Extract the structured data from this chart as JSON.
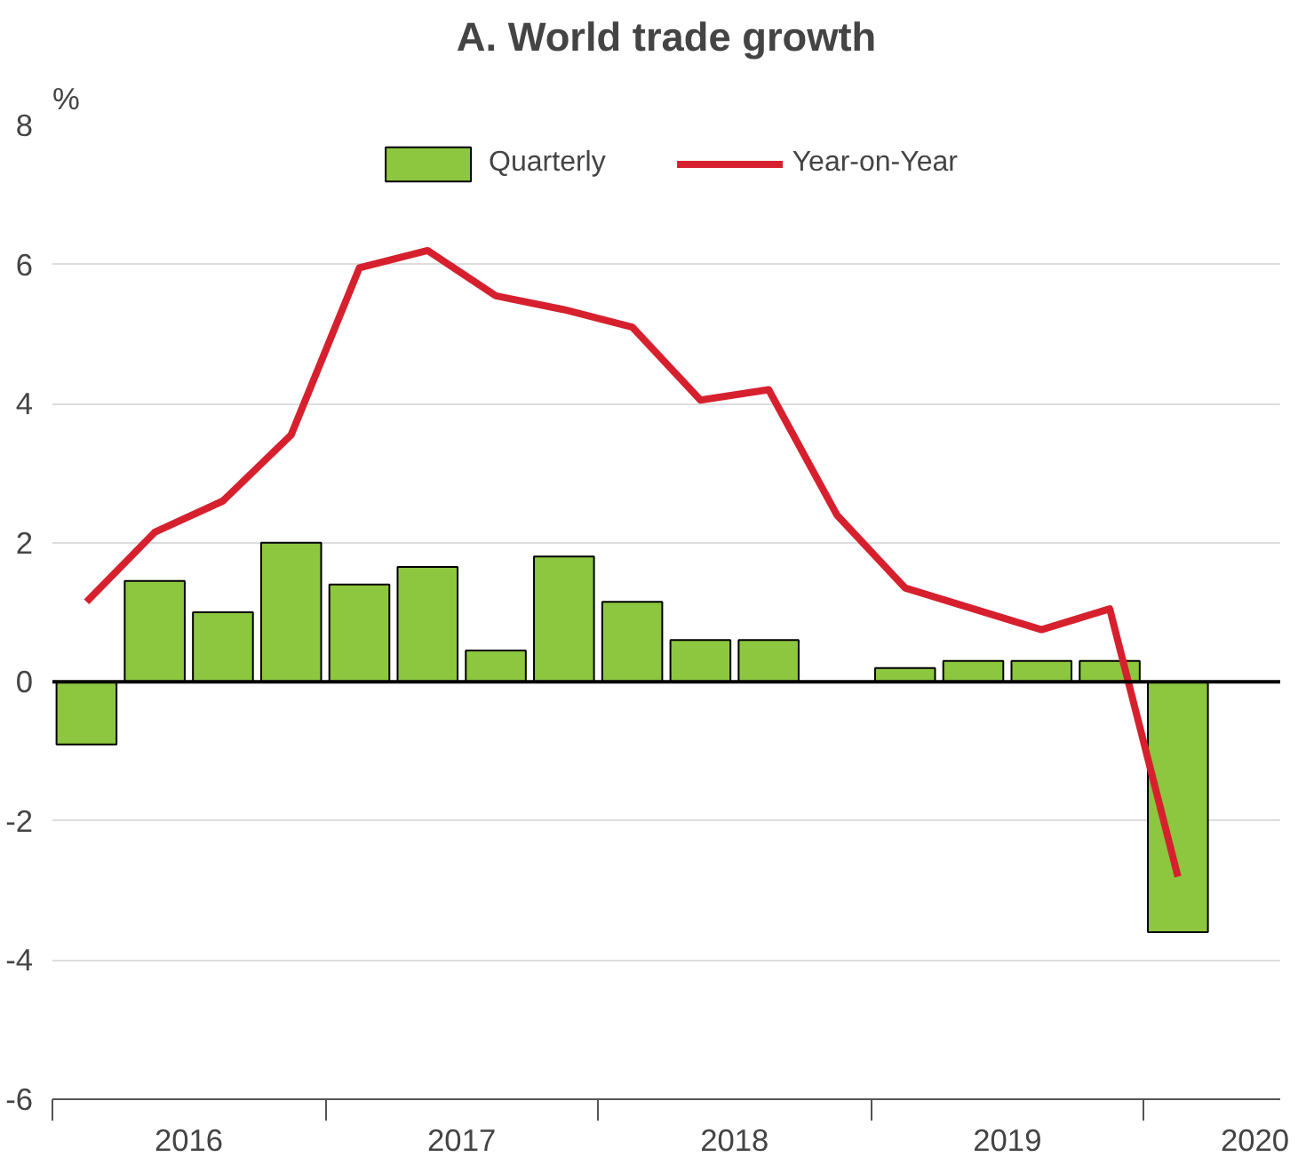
{
  "chart_data": {
    "type": "bar",
    "title": "A. World trade growth",
    "ylabel": "%",
    "x": [
      2016.125,
      2016.375,
      2016.625,
      2016.875,
      2017.125,
      2017.375,
      2017.625,
      2017.875,
      2018.125,
      2018.375,
      2018.625,
      2018.875,
      2019.125,
      2019.375,
      2019.625,
      2019.875,
      2020.125
    ],
    "series": [
      {
        "name": "Quarterly",
        "color": "#8dc63f",
        "values": [
          -0.9,
          1.45,
          1.0,
          2.0,
          1.4,
          1.65,
          0.45,
          1.8,
          1.15,
          0.6,
          0.6,
          null,
          0.2,
          0.3,
          0.3,
          0.3,
          -3.6
        ]
      },
      {
        "name": "Year-on-Year",
        "type": "line",
        "color": "#d7202e",
        "values": [
          1.15,
          2.15,
          2.6,
          3.55,
          5.95,
          6.2,
          5.55,
          5.35,
          5.1,
          4.05,
          4.2,
          2.4,
          1.35,
          1.05,
          0.75,
          1.05,
          -2.8
        ]
      }
    ],
    "xlim": [
      2016,
      2020.5
    ],
    "xticks": [
      {
        "value": 2016,
        "label": null
      },
      {
        "value": 2016.5,
        "label": "2016"
      },
      {
        "value": 2017,
        "label": null
      },
      {
        "value": 2017.5,
        "label": "2017"
      },
      {
        "value": 2018,
        "label": null
      },
      {
        "value": 2018.5,
        "label": "2018"
      },
      {
        "value": 2019,
        "label": null
      },
      {
        "value": 2019.5,
        "label": "2019"
      },
      {
        "value": 2020,
        "label": null
      },
      {
        "value": 2020.5,
        "label": "2020"
      }
    ],
    "ylim": [
      -6,
      8
    ],
    "yticks": [
      -6,
      -4,
      -2,
      0,
      2,
      4,
      6,
      8
    ],
    "ref_lines": [
      {
        "axis": "y",
        "value": 0,
        "color": "#000000"
      }
    ],
    "grid": "y",
    "legend": "top",
    "marker": "none",
    "line_style": "solid"
  }
}
